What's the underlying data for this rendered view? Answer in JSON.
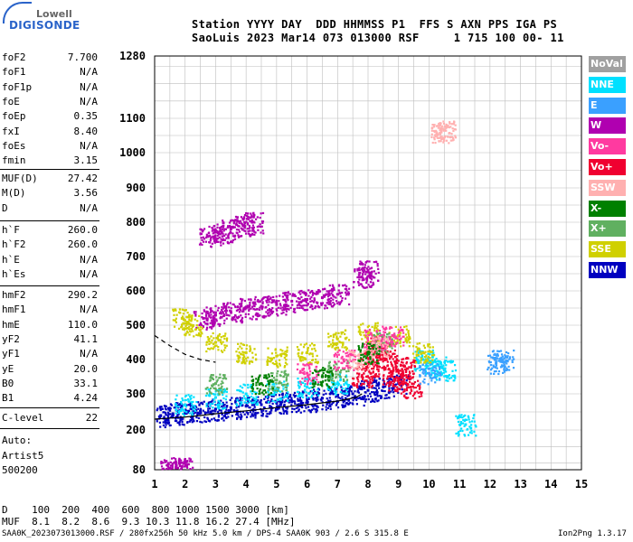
{
  "logo": {
    "top": "Lowell",
    "bottom": "DIGISONDE"
  },
  "header": {
    "line1": "Station YYYY DAY  DDD HHMMSS P1  FFS S AXN PPS IGA PS",
    "line2": "SaoLuis 2023 Mar14 073 013000 RSF     1 715 100 00- 11"
  },
  "params_group1": [
    {
      "name": "foF2",
      "value": "7.700"
    },
    {
      "name": "foF1",
      "value": "N/A"
    },
    {
      "name": "foF1p",
      "value": "N/A"
    },
    {
      "name": "foE",
      "value": "N/A"
    },
    {
      "name": "foEp",
      "value": "0.35"
    },
    {
      "name": "fxI",
      "value": "8.40"
    },
    {
      "name": "foEs",
      "value": "N/A"
    },
    {
      "name": "fmin",
      "value": "3.15"
    }
  ],
  "params_group2": [
    {
      "name": "MUF(D)",
      "value": "27.42"
    },
    {
      "name": "M(D)",
      "value": "3.56"
    },
    {
      "name": "D",
      "value": "N/A"
    }
  ],
  "params_group3": [
    {
      "name": "h`F",
      "value": "260.0"
    },
    {
      "name": "h`F2",
      "value": "260.0"
    },
    {
      "name": "h`E",
      "value": "N/A"
    },
    {
      "name": "h`Es",
      "value": "N/A"
    }
  ],
  "params_group4": [
    {
      "name": "hmF2",
      "value": "290.2"
    },
    {
      "name": "hmF1",
      "value": "N/A"
    },
    {
      "name": "hmE",
      "value": "110.0"
    },
    {
      "name": "yF2",
      "value": "41.1"
    },
    {
      "name": "yF1",
      "value": "N/A"
    },
    {
      "name": "yE",
      "value": "20.0"
    },
    {
      "name": "B0",
      "value": "33.1"
    },
    {
      "name": "B1",
      "value": "4.24"
    }
  ],
  "clevel": {
    "name": "C-level",
    "value": "22"
  },
  "auto": [
    "Auto:",
    "Artist5",
    "500200"
  ],
  "legend": [
    {
      "label": "NoVal",
      "color": "#a0a0a0"
    },
    {
      "label": "NNE",
      "color": "#00e0ff"
    },
    {
      "label": "E",
      "color": "#3aa0ff"
    },
    {
      "label": "W",
      "color": "#b000b0"
    },
    {
      "label": "Vo-",
      "color": "#ff3aa0"
    },
    {
      "label": "Vo+",
      "color": "#f00030"
    },
    {
      "label": "SSW",
      "color": "#ffb0b0"
    },
    {
      "label": "X-",
      "color": "#008000"
    },
    {
      "label": "X+",
      "color": "#60b060"
    },
    {
      "label": "SSE",
      "color": "#d0d000"
    },
    {
      "label": "NNW",
      "color": "#0000c0"
    }
  ],
  "bottom": {
    "d_row": "D    100  200  400  600  800 1000 1500 3000 [km]",
    "muf_row": "MUF  8.1  8.2  8.6  9.3 10.3 11.8 16.2 27.4 [MHz]",
    "footer_left": "SAA0K_2023073013000.RSF / 280fx256h 50 kHz 5.0 km / DPS-4 SAA0K 903 / 2.6 S 315.8 E",
    "footer_right": "Ion2Png 1.3.17"
  },
  "chart_data": {
    "type": "scatter",
    "title": "",
    "xlabel": "",
    "ylabel": "",
    "xlim": [
      1,
      15
    ],
    "ylim": [
      80,
      1280
    ],
    "y_scale": "log-like (ionogram virtual height)",
    "x_ticks": [
      1,
      2,
      3,
      4,
      5,
      6,
      7,
      8,
      9,
      10,
      11,
      12,
      13,
      14,
      15
    ],
    "y_ticks": [
      80,
      200,
      300,
      400,
      500,
      600,
      700,
      800,
      900,
      1000,
      1100,
      1280
    ],
    "grid": true,
    "series": [
      {
        "name": "NNW",
        "color": "#0000c0",
        "points": [
          [
            1.2,
            240
          ],
          [
            1.6,
            245
          ],
          [
            2.0,
            248
          ],
          [
            2.5,
            252
          ],
          [
            3.0,
            258
          ],
          [
            3.5,
            262
          ],
          [
            4.0,
            266
          ],
          [
            4.5,
            270
          ],
          [
            5.0,
            275
          ],
          [
            5.5,
            278
          ],
          [
            6.0,
            282
          ],
          [
            6.5,
            288
          ],
          [
            7.0,
            295
          ],
          [
            7.5,
            300
          ],
          [
            8.0,
            310
          ],
          [
            8.5,
            320
          ],
          [
            9.0,
            330
          ]
        ]
      },
      {
        "name": "W",
        "color": "#b000b0",
        "points": [
          [
            2.8,
            760
          ],
          [
            3.2,
            770
          ],
          [
            3.5,
            780
          ],
          [
            3.9,
            790
          ],
          [
            4.2,
            800
          ],
          [
            2.6,
            520
          ],
          [
            3.0,
            530
          ],
          [
            3.5,
            540
          ],
          [
            4.0,
            550
          ],
          [
            4.5,
            555
          ],
          [
            5.0,
            560
          ],
          [
            5.5,
            570
          ],
          [
            6.0,
            575
          ],
          [
            6.5,
            580
          ],
          [
            7.0,
            590
          ],
          [
            7.8,
            640
          ],
          [
            8.0,
            660
          ],
          [
            1.5,
            85
          ],
          [
            1.7,
            87
          ],
          [
            1.9,
            90
          ]
        ]
      },
      {
        "name": "Vo+",
        "color": "#f00030",
        "points": [
          [
            7.8,
            350
          ],
          [
            8.0,
            380
          ],
          [
            8.2,
            420
          ],
          [
            8.4,
            440
          ],
          [
            8.6,
            400
          ],
          [
            8.8,
            360
          ],
          [
            9.0,
            340
          ],
          [
            9.2,
            380
          ],
          [
            9.4,
            320
          ]
        ]
      },
      {
        "name": "NNE",
        "color": "#00e0ff",
        "points": [
          [
            2.0,
            270
          ],
          [
            3.0,
            290
          ],
          [
            4.0,
            300
          ],
          [
            5.0,
            310
          ],
          [
            6.0,
            320
          ],
          [
            7.0,
            330
          ],
          [
            9.8,
            400
          ],
          [
            10.2,
            380
          ],
          [
            10.5,
            370
          ],
          [
            11.2,
            215
          ]
        ]
      },
      {
        "name": "SSE",
        "color": "#d0d000",
        "points": [
          [
            1.9,
            520
          ],
          [
            2.2,
            500
          ],
          [
            3.0,
            450
          ],
          [
            4.0,
            420
          ],
          [
            5.0,
            410
          ],
          [
            6.0,
            420
          ],
          [
            7.0,
            460
          ],
          [
            8.0,
            480
          ],
          [
            9.0,
            470
          ],
          [
            9.8,
            420
          ]
        ]
      },
      {
        "name": "E",
        "color": "#3aa0ff",
        "points": [
          [
            12.2,
            390
          ],
          [
            12.4,
            400
          ],
          [
            10.0,
            360
          ]
        ]
      },
      {
        "name": "X+",
        "color": "#60b060",
        "points": [
          [
            3.0,
            330
          ],
          [
            5.0,
            340
          ],
          [
            7.0,
            370
          ],
          [
            8.5,
            450
          ]
        ]
      },
      {
        "name": "Vo-",
        "color": "#ff3aa0",
        "points": [
          [
            6.0,
            360
          ],
          [
            7.2,
            400
          ],
          [
            8.2,
            460
          ],
          [
            8.8,
            470
          ]
        ]
      },
      {
        "name": "SSW",
        "color": "#ffb0b0",
        "points": [
          [
            10.4,
            1060
          ],
          [
            10.5,
            1065
          ],
          [
            7.7,
            400
          ],
          [
            8.3,
            440
          ]
        ]
      },
      {
        "name": "X-",
        "color": "#008000",
        "points": [
          [
            4.5,
            330
          ],
          [
            6.5,
            350
          ],
          [
            8.0,
            420
          ]
        ]
      }
    ],
    "profile_line": {
      "x": [
        1.0,
        1.5,
        2.0,
        2.5,
        3.0,
        4.0,
        5.0,
        6.0,
        7.0,
        7.6,
        7.8
      ],
      "y": [
        230,
        233,
        236,
        240,
        245,
        253,
        262,
        270,
        280,
        290,
        300
      ]
    },
    "dashed_line": {
      "x": [
        1.0,
        1.5,
        2.0,
        2.5,
        3.0
      ],
      "y": [
        470,
        440,
        415,
        400,
        392
      ]
    }
  }
}
